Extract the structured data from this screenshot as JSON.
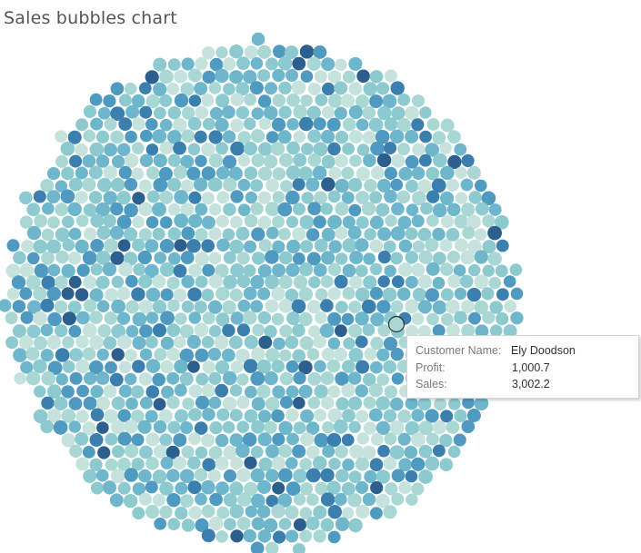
{
  "title": "Sales bubbles chart",
  "chart_data": {
    "type": "bubble",
    "title": "Sales bubbles chart",
    "encoding": {
      "color": "Profit",
      "size": "Sales",
      "detail": "Customer Name"
    },
    "marks": "packed circles, one per customer, colored by profit from light teal to dark blue",
    "palette": [
      "#c5e3dc",
      "#a9d7d3",
      "#8ccad0",
      "#6db6cc",
      "#4f9ac0",
      "#3a7fae",
      "#2c5f8e"
    ],
    "highlighted": {
      "customer_name": "Ely Doodson",
      "profit": 1000.7,
      "sales": 3002.2
    }
  },
  "tooltip": {
    "rows": [
      {
        "label": "Customer Name:",
        "value": "Ely Doodson"
      },
      {
        "label": "Profit:",
        "value": "1,000.7"
      },
      {
        "label": "Sales:",
        "value": "3,002.2"
      }
    ]
  }
}
